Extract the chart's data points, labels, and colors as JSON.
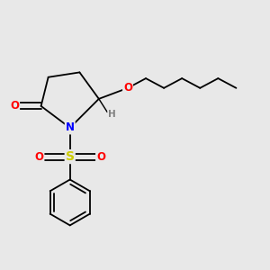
{
  "background_color": "#e8e8e8",
  "bond_color": "#000000",
  "atom_colors": {
    "O": "#ff0000",
    "N": "#0000ff",
    "S": "#cccc00",
    "H": "#808080"
  },
  "font_size_atoms": 8.5,
  "line_width": 1.3
}
